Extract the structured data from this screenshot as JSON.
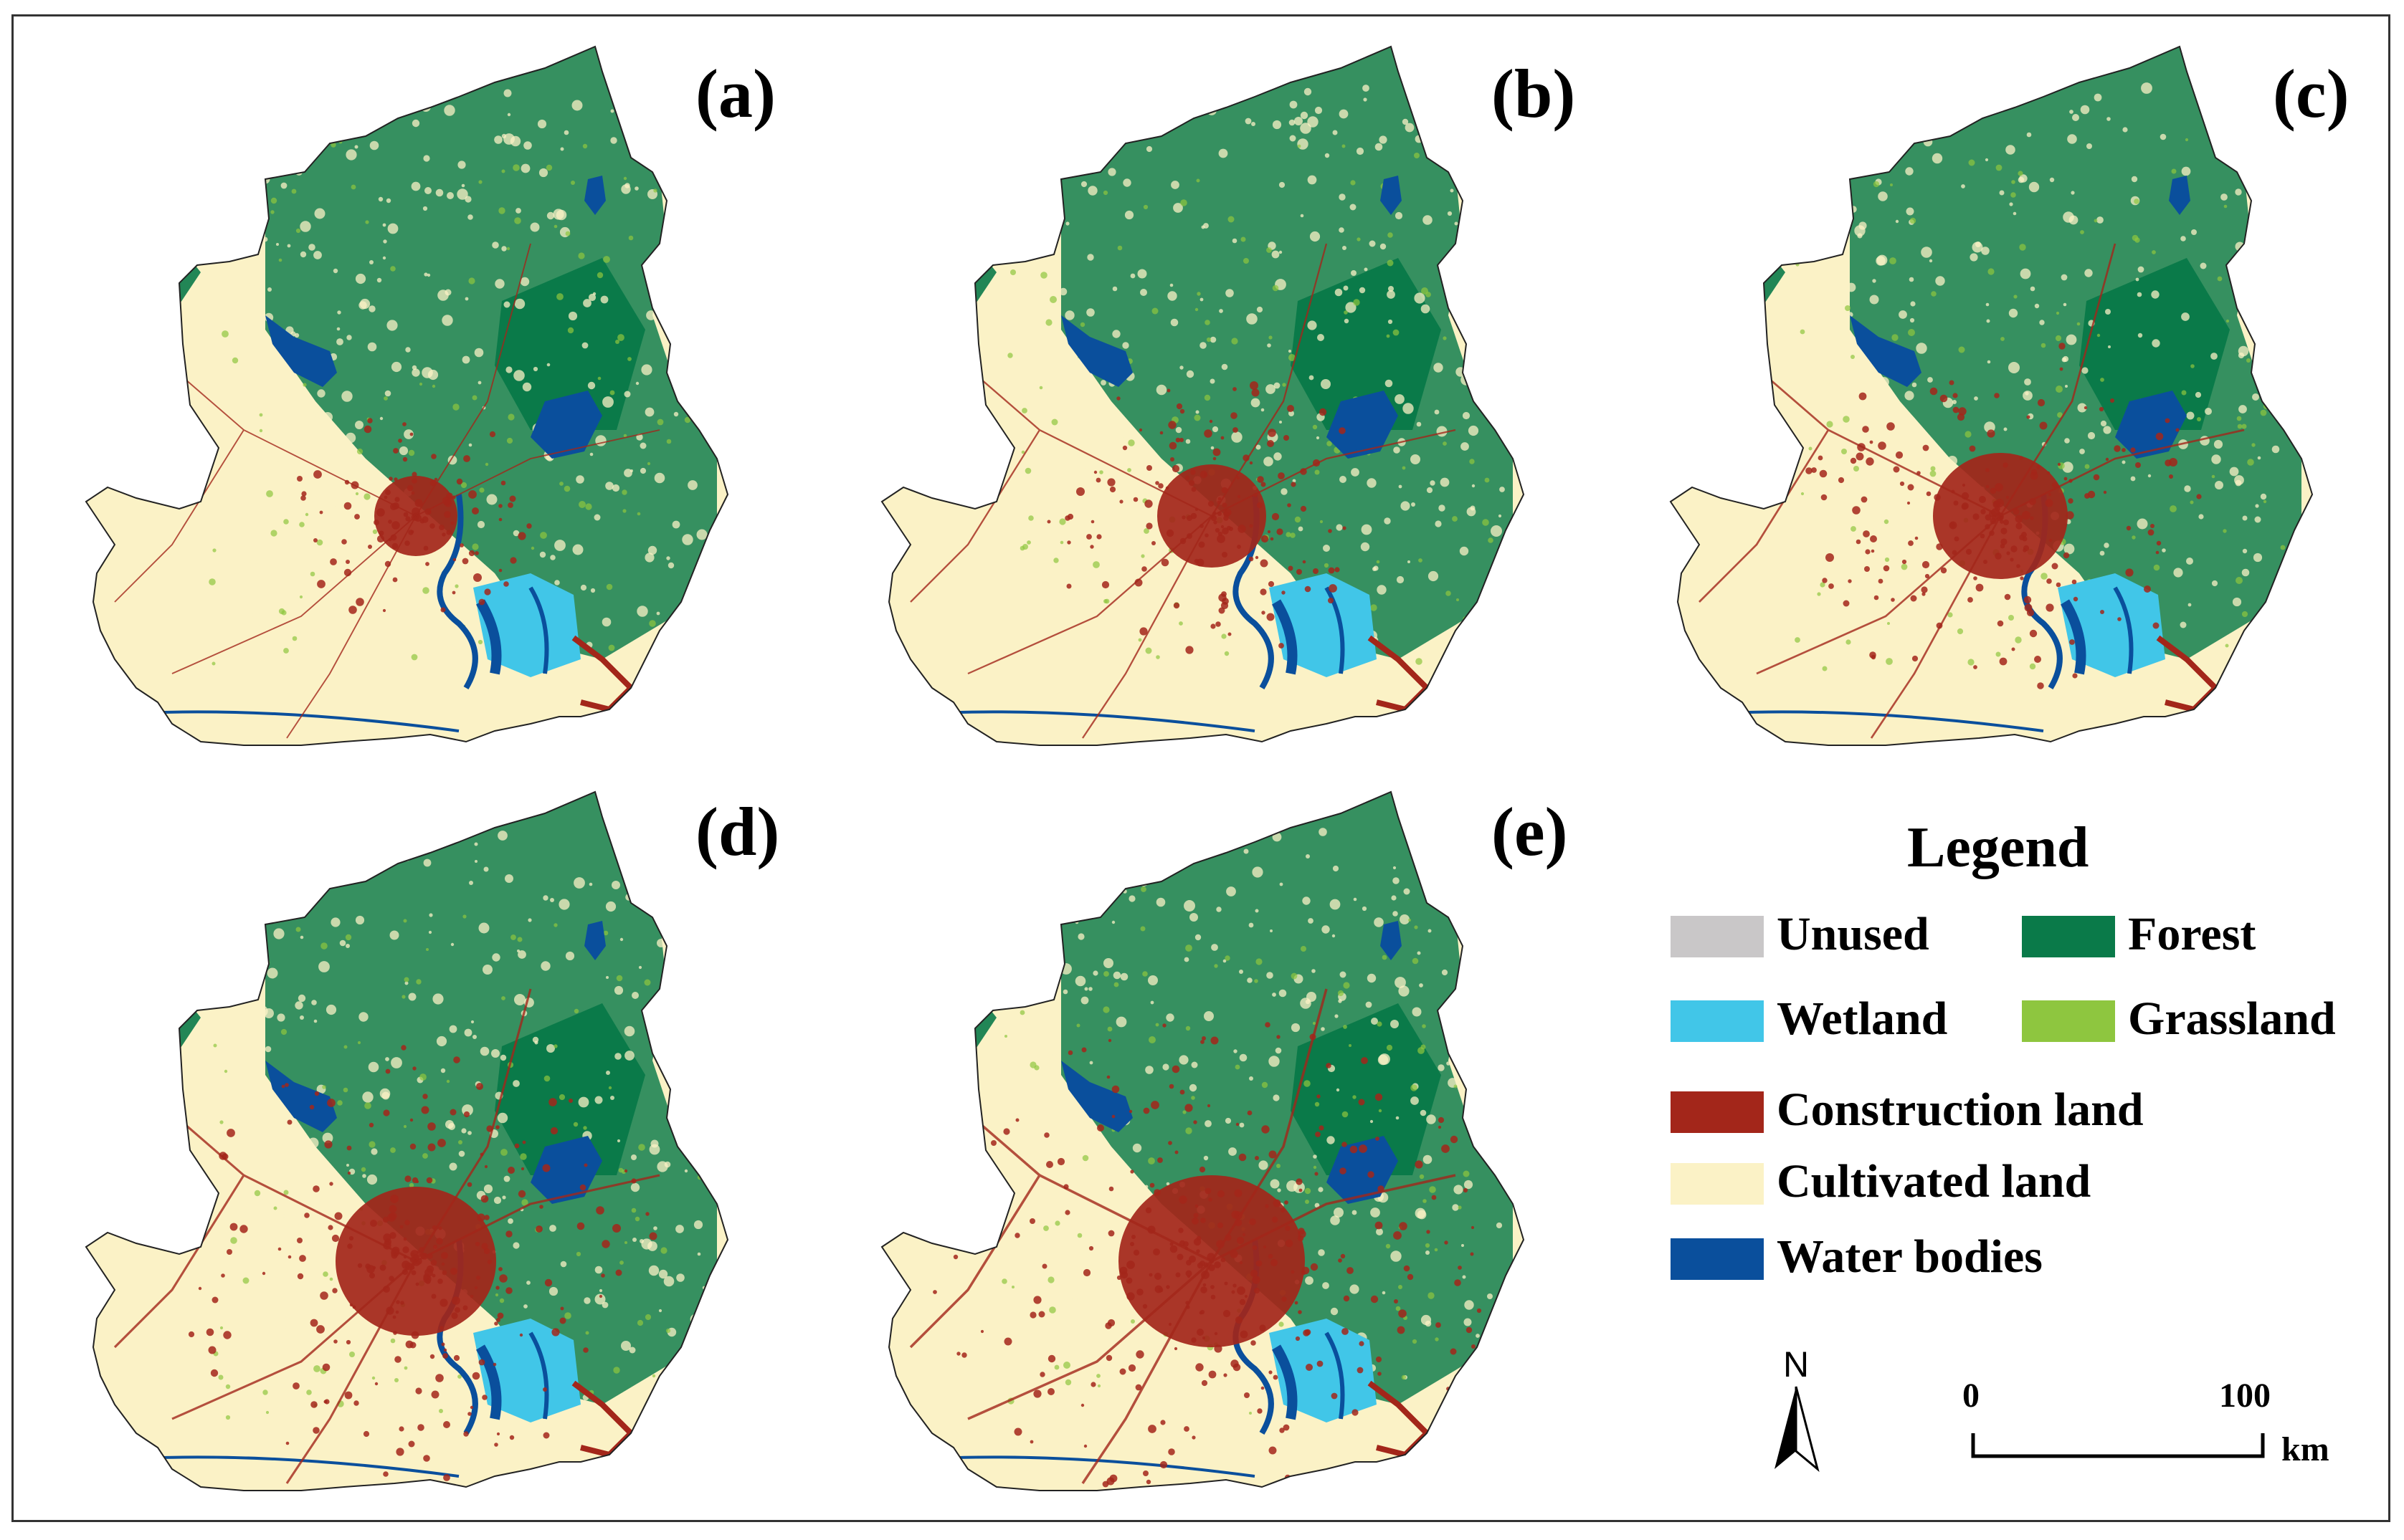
{
  "panels": [
    {
      "label": "(a)",
      "construction": 1,
      "forest": 1.0
    },
    {
      "label": "(b)",
      "construction": 2,
      "forest": 0.95
    },
    {
      "label": "(c)",
      "construction": 3,
      "forest": 0.85
    },
    {
      "label": "(d)",
      "construction": 4,
      "forest": 0.85
    },
    {
      "label": "(e)",
      "construction": 5,
      "forest": 0.8
    }
  ],
  "legend": {
    "title": "Legend",
    "items": [
      {
        "label": "Unused",
        "color": "#c9c7c8"
      },
      {
        "label": "Forest",
        "color": "#0a7a49"
      },
      {
        "label": "Wetland",
        "color": "#41c6e8"
      },
      {
        "label": "Grassland",
        "color": "#8ec63f"
      },
      {
        "label": "Construction land",
        "color": "#a3261a"
      },
      {
        "label": "Cultivated land",
        "color": "#fbf2c6"
      },
      {
        "label": "Water bodies",
        "color": "#0a4f9c"
      }
    ]
  },
  "north_arrow": {
    "label": "N"
  },
  "scale_bar": {
    "start": "0",
    "end": "100",
    "unit": "km"
  }
}
